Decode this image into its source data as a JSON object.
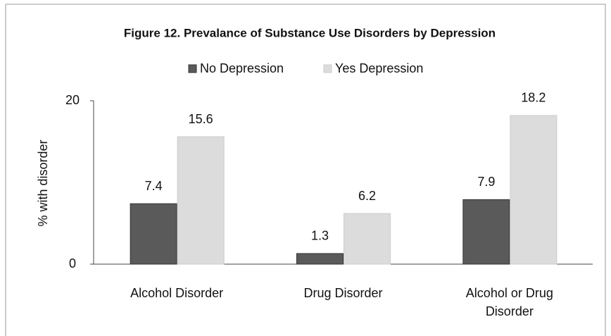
{
  "chart_data": {
    "type": "bar",
    "title": "Figure 12. Prevalance of Substance Use Disorders by Depression",
    "y_label": "% with disorder",
    "categories": [
      "Alcohol Disorder",
      "Drug Disorder",
      "Alcohol or Drug Disorder"
    ],
    "series": [
      {
        "name": "No Depression",
        "color": "#5a5a5a",
        "values": [
          7.4,
          1.3,
          7.9
        ]
      },
      {
        "name": "Yes Depression",
        "color": "#dcdcdc",
        "values": [
          15.6,
          6.2,
          18.2
        ]
      }
    ],
    "ylim": [
      0,
      20
    ],
    "yticks": [
      0,
      20
    ],
    "legend": "top",
    "grid": false
  }
}
